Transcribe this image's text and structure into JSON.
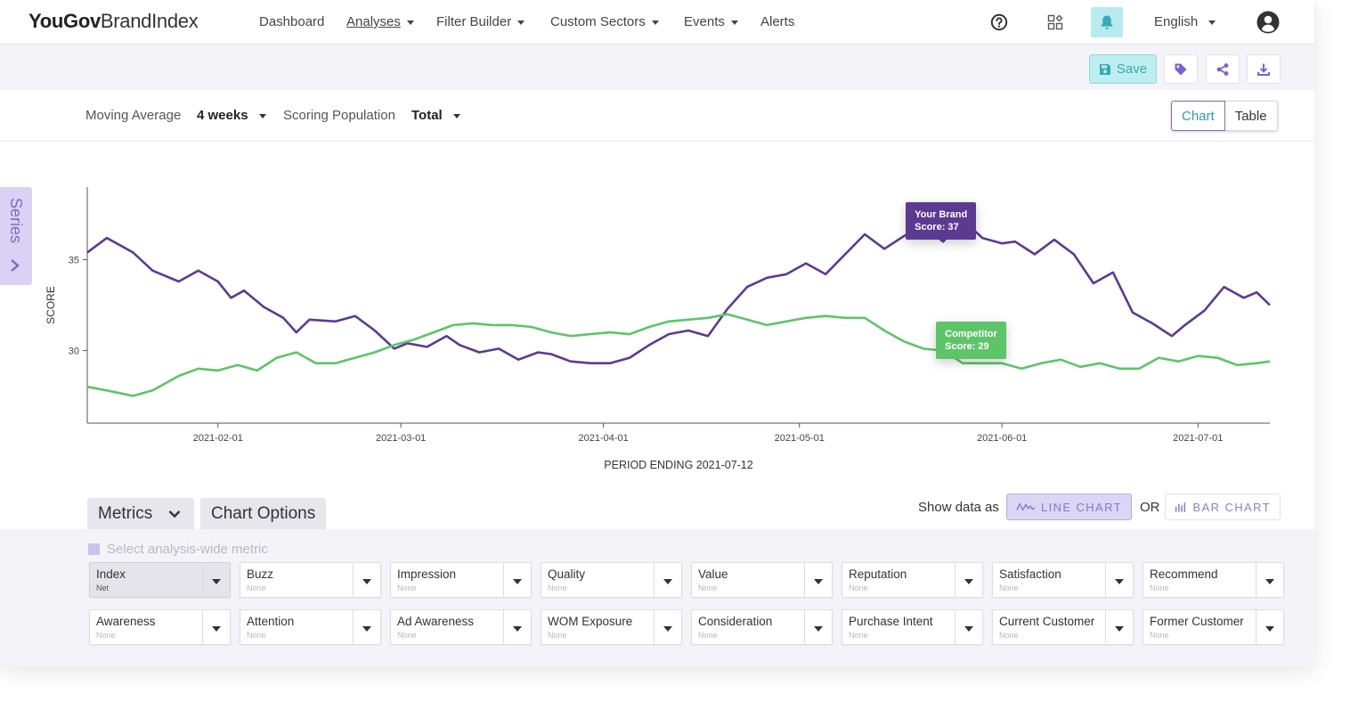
{
  "nav": {
    "logo_bold": "YouGov",
    "logo_light": "BrandIndex",
    "items": [
      {
        "label": "Dashboard",
        "caret": false
      },
      {
        "label": "Analyses",
        "caret": true
      },
      {
        "label": "Filter Builder",
        "caret": true
      },
      {
        "label": "Custom Sectors",
        "caret": true
      },
      {
        "label": "Events",
        "caret": true
      },
      {
        "label": "Alerts",
        "caret": false
      }
    ],
    "language": "English"
  },
  "toolbar": {
    "save_label": "Save"
  },
  "settings": {
    "moving_average_label": "Moving Average",
    "moving_average_value": "4 weeks",
    "scoring_population_label": "Scoring Population",
    "scoring_population_value": "Total",
    "view_chart": "Chart",
    "view_table": "Table"
  },
  "series_tab": {
    "label": "Series"
  },
  "chart_data": {
    "type": "line",
    "ylabel": "SCORE",
    "xlabel": "PERIOD ENDING 2021-07-12",
    "yticks": [
      30,
      35
    ],
    "ylim": [
      26,
      39
    ],
    "xlim": [
      "2021-01-12",
      "2021-07-12"
    ],
    "xticks": [
      "2021-02-01",
      "2021-03-01",
      "2021-04-01",
      "2021-05-01",
      "2021-06-01",
      "2021-07-01"
    ],
    "series": [
      {
        "name": "Your Brand",
        "color": "#5c3a92",
        "points": [
          [
            "2021-01-12",
            35.4
          ],
          [
            "2021-01-15",
            36.2
          ],
          [
            "2021-01-19",
            35.4
          ],
          [
            "2021-01-22",
            34.4
          ],
          [
            "2021-01-26",
            33.8
          ],
          [
            "2021-01-29",
            34.4
          ],
          [
            "2021-02-01",
            33.8
          ],
          [
            "2021-02-03",
            32.9
          ],
          [
            "2021-02-05",
            33.3
          ],
          [
            "2021-02-08",
            32.4
          ],
          [
            "2021-02-11",
            31.8
          ],
          [
            "2021-02-13",
            31.0
          ],
          [
            "2021-02-15",
            31.7
          ],
          [
            "2021-02-19",
            31.6
          ],
          [
            "2021-02-22",
            31.9
          ],
          [
            "2021-02-25",
            31.1
          ],
          [
            "2021-02-28",
            30.1
          ],
          [
            "2021-03-02",
            30.4
          ],
          [
            "2021-03-05",
            30.2
          ],
          [
            "2021-03-08",
            30.8
          ],
          [
            "2021-03-10",
            30.3
          ],
          [
            "2021-03-13",
            29.9
          ],
          [
            "2021-03-16",
            30.1
          ],
          [
            "2021-03-19",
            29.5
          ],
          [
            "2021-03-22",
            29.9
          ],
          [
            "2021-03-24",
            29.8
          ],
          [
            "2021-03-27",
            29.4
          ],
          [
            "2021-03-30",
            29.3
          ],
          [
            "2021-04-02",
            29.3
          ],
          [
            "2021-04-05",
            29.6
          ],
          [
            "2021-04-08",
            30.3
          ],
          [
            "2021-04-11",
            30.9
          ],
          [
            "2021-04-14",
            31.1
          ],
          [
            "2021-04-17",
            30.8
          ],
          [
            "2021-04-20",
            32.3
          ],
          [
            "2021-04-23",
            33.5
          ],
          [
            "2021-04-26",
            34.0
          ],
          [
            "2021-04-29",
            34.2
          ],
          [
            "2021-05-02",
            34.8
          ],
          [
            "2021-05-05",
            34.2
          ],
          [
            "2021-05-08",
            35.3
          ],
          [
            "2021-05-11",
            36.4
          ],
          [
            "2021-05-14",
            35.6
          ],
          [
            "2021-05-17",
            36.3
          ],
          [
            "2021-05-20",
            36.9
          ],
          [
            "2021-05-23",
            36.0
          ],
          [
            "2021-05-26",
            37.2
          ],
          [
            "2021-05-29",
            36.2
          ],
          [
            "2021-06-01",
            35.9
          ],
          [
            "2021-06-03",
            36.0
          ],
          [
            "2021-06-06",
            35.3
          ],
          [
            "2021-06-09",
            36.1
          ],
          [
            "2021-06-12",
            35.3
          ],
          [
            "2021-06-15",
            33.7
          ],
          [
            "2021-06-18",
            34.3
          ],
          [
            "2021-06-21",
            32.1
          ],
          [
            "2021-06-24",
            31.5
          ],
          [
            "2021-06-27",
            30.8
          ],
          [
            "2021-06-29",
            31.4
          ],
          [
            "2021-07-02",
            32.2
          ],
          [
            "2021-07-05",
            33.5
          ],
          [
            "2021-07-08",
            32.9
          ],
          [
            "2021-07-10",
            33.2
          ],
          [
            "2021-07-12",
            32.5
          ]
        ],
        "tooltip": {
          "title": "Your Brand",
          "score_text": "Score: 37"
        }
      },
      {
        "name": "Competitor",
        "color": "#5ec46a",
        "points": [
          [
            "2021-01-12",
            28.0
          ],
          [
            "2021-01-15",
            27.8
          ],
          [
            "2021-01-19",
            27.5
          ],
          [
            "2021-01-22",
            27.8
          ],
          [
            "2021-01-26",
            28.6
          ],
          [
            "2021-01-29",
            29.0
          ],
          [
            "2021-02-01",
            28.9
          ],
          [
            "2021-02-04",
            29.2
          ],
          [
            "2021-02-07",
            28.9
          ],
          [
            "2021-02-10",
            29.6
          ],
          [
            "2021-02-13",
            29.9
          ],
          [
            "2021-02-16",
            29.3
          ],
          [
            "2021-02-19",
            29.3
          ],
          [
            "2021-02-22",
            29.6
          ],
          [
            "2021-02-25",
            29.9
          ],
          [
            "2021-02-28",
            30.3
          ],
          [
            "2021-03-03",
            30.6
          ],
          [
            "2021-03-06",
            31.0
          ],
          [
            "2021-03-09",
            31.4
          ],
          [
            "2021-03-12",
            31.5
          ],
          [
            "2021-03-15",
            31.4
          ],
          [
            "2021-03-18",
            31.4
          ],
          [
            "2021-03-21",
            31.3
          ],
          [
            "2021-03-24",
            31.0
          ],
          [
            "2021-03-27",
            30.8
          ],
          [
            "2021-03-30",
            30.9
          ],
          [
            "2021-04-02",
            31.0
          ],
          [
            "2021-04-05",
            30.9
          ],
          [
            "2021-04-08",
            31.3
          ],
          [
            "2021-04-11",
            31.6
          ],
          [
            "2021-04-14",
            31.7
          ],
          [
            "2021-04-17",
            31.8
          ],
          [
            "2021-04-20",
            32.0
          ],
          [
            "2021-04-23",
            31.7
          ],
          [
            "2021-04-26",
            31.4
          ],
          [
            "2021-04-29",
            31.6
          ],
          [
            "2021-05-02",
            31.8
          ],
          [
            "2021-05-05",
            31.9
          ],
          [
            "2021-05-08",
            31.8
          ],
          [
            "2021-05-11",
            31.8
          ],
          [
            "2021-05-14",
            31.1
          ],
          [
            "2021-05-17",
            30.5
          ],
          [
            "2021-05-20",
            30.1
          ],
          [
            "2021-05-23",
            30.0
          ],
          [
            "2021-05-26",
            29.3
          ],
          [
            "2021-05-29",
            29.3
          ],
          [
            "2021-06-01",
            29.3
          ],
          [
            "2021-06-04",
            29.0
          ],
          [
            "2021-06-07",
            29.3
          ],
          [
            "2021-06-10",
            29.5
          ],
          [
            "2021-06-13",
            29.1
          ],
          [
            "2021-06-16",
            29.3
          ],
          [
            "2021-06-19",
            29.0
          ],
          [
            "2021-06-22",
            29.0
          ],
          [
            "2021-06-25",
            29.6
          ],
          [
            "2021-06-28",
            29.4
          ],
          [
            "2021-07-01",
            29.7
          ],
          [
            "2021-07-04",
            29.6
          ],
          [
            "2021-07-07",
            29.2
          ],
          [
            "2021-07-10",
            29.3
          ],
          [
            "2021-07-12",
            29.4
          ]
        ],
        "tooltip": {
          "title": "Competitor",
          "score_text": "Score: 29"
        }
      }
    ]
  },
  "tabs": {
    "metrics_label": "Metrics",
    "chart_options_label": "Chart Options"
  },
  "showdata": {
    "label": "Show data as",
    "or_label": "OR",
    "line_chart": "LINE CHART",
    "bar_chart": "BAR CHART"
  },
  "metrics": {
    "analysis_wide_label": "Select analysis-wide metric",
    "row1": [
      {
        "name": "Index",
        "sub": "Net"
      },
      {
        "name": "Buzz",
        "sub": "None"
      },
      {
        "name": "Impression",
        "sub": "None"
      },
      {
        "name": "Quality",
        "sub": "None"
      },
      {
        "name": "Value",
        "sub": "None"
      },
      {
        "name": "Reputation",
        "sub": "None"
      },
      {
        "name": "Satisfaction",
        "sub": "None"
      },
      {
        "name": "Recommend",
        "sub": "None"
      }
    ],
    "row2": [
      {
        "name": "Awareness",
        "sub": "None"
      },
      {
        "name": "Attention",
        "sub": "None"
      },
      {
        "name": "Ad Awareness",
        "sub": "None"
      },
      {
        "name": "WOM Exposure",
        "sub": "None"
      },
      {
        "name": "Consideration",
        "sub": "None"
      },
      {
        "name": "Purchase Intent",
        "sub": "None"
      },
      {
        "name": "Current Customer",
        "sub": "None"
      },
      {
        "name": "Former Customer",
        "sub": "None"
      }
    ]
  },
  "colors": {
    "brand_purple": "#5c3a92",
    "competitor_green": "#5ec46a",
    "accent_teal": "#3aa9b2",
    "lavender": "#d9d2f5"
  }
}
